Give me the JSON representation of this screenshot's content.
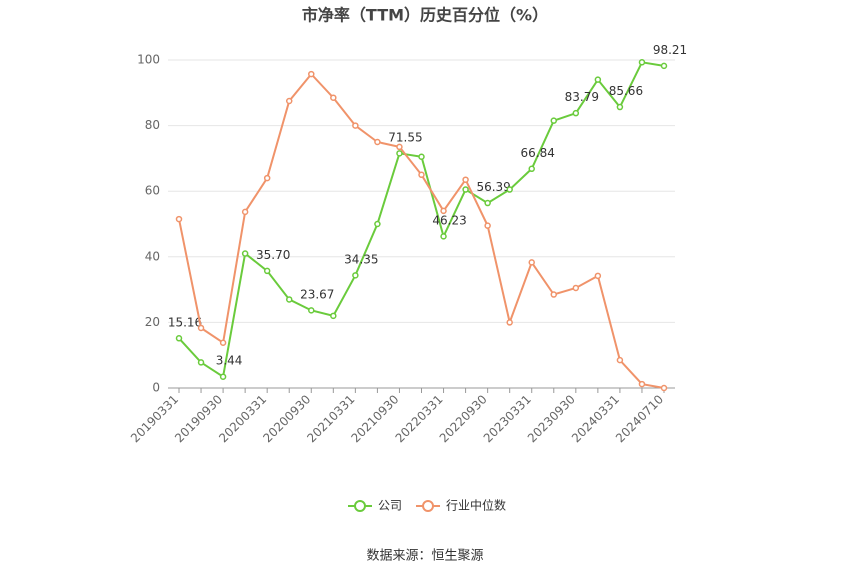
{
  "chart_data": {
    "type": "line",
    "title": "市净率（TTM）历史百分位（%）",
    "categories": [
      "20190331",
      null,
      "20190930",
      null,
      "20200331",
      null,
      "20200930",
      null,
      "20210331",
      null,
      "20210930",
      null,
      "20220331",
      null,
      "20220930",
      null,
      "20230331",
      null,
      "20230930",
      null,
      "20240331",
      null,
      "20240710"
    ],
    "series": [
      {
        "name": "公司",
        "color": "#6acb3c",
        "values": [
          15.16,
          7.8,
          3.44,
          41,
          35.7,
          27,
          23.67,
          22,
          34.35,
          50,
          71.55,
          70.5,
          46.23,
          60.5,
          56.39,
          60.5,
          66.84,
          81.5,
          83.79,
          94,
          85.66,
          99.3,
          98.21
        ],
        "value_labels": [
          "15.16",
          null,
          "3.44",
          null,
          "35.70",
          null,
          "23.67",
          null,
          "34.35",
          null,
          "71.55",
          null,
          "46.23",
          null,
          "56.39",
          null,
          "66.84",
          null,
          "83.79",
          null,
          "85.66",
          null,
          "98.21"
        ]
      },
      {
        "name": "行业中位数",
        "color": "#f0936a",
        "values": [
          51.5,
          18.3,
          13.8,
          53.7,
          64,
          87.5,
          95.7,
          88.5,
          80,
          75,
          73.5,
          65,
          54,
          63.5,
          49.5,
          20,
          38.3,
          28.5,
          30.5,
          34.2,
          8.5,
          1.2,
          0
        ]
      }
    ],
    "ylim": [
      0,
      100
    ],
    "yticks": [
      0,
      20,
      40,
      60,
      80,
      100
    ],
    "grid": true,
    "legend": "bottom",
    "source": "数据来源：恒生聚源"
  }
}
